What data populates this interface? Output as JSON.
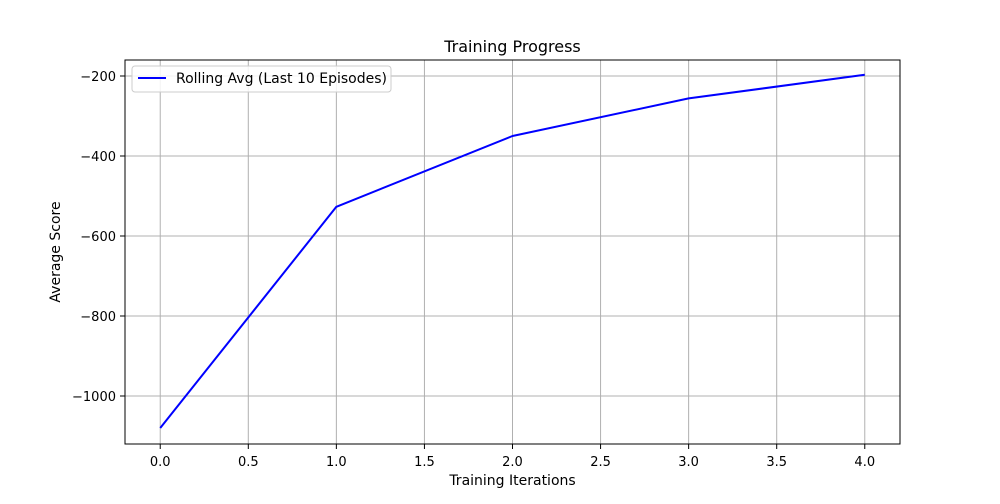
{
  "chart_data": {
    "type": "line",
    "title": "Training Progress",
    "xlabel": "Training Iterations",
    "ylabel": "Average Score",
    "xlim": [
      -0.2,
      4.2
    ],
    "ylim": [
      -1120,
      -160
    ],
    "x_ticks": [
      0.0,
      0.5,
      1.0,
      1.5,
      2.0,
      2.5,
      3.0,
      3.5,
      4.0
    ],
    "x_tick_labels": [
      "0.0",
      "0.5",
      "1.0",
      "1.5",
      "2.0",
      "2.5",
      "3.0",
      "3.5",
      "4.0"
    ],
    "y_ticks": [
      -1000,
      -800,
      -600,
      -400,
      -200
    ],
    "y_tick_labels": [
      "−1000",
      "−800",
      "−600",
      "−400",
      "−200"
    ],
    "grid": true,
    "legend_position": "top-left",
    "series": [
      {
        "name": "Rolling Avg (Last 10 Episodes)",
        "color": "#0000ff",
        "x": [
          0,
          1,
          2,
          3,
          4
        ],
        "y": [
          -1080,
          -527,
          -350,
          -256,
          -197
        ]
      }
    ]
  }
}
